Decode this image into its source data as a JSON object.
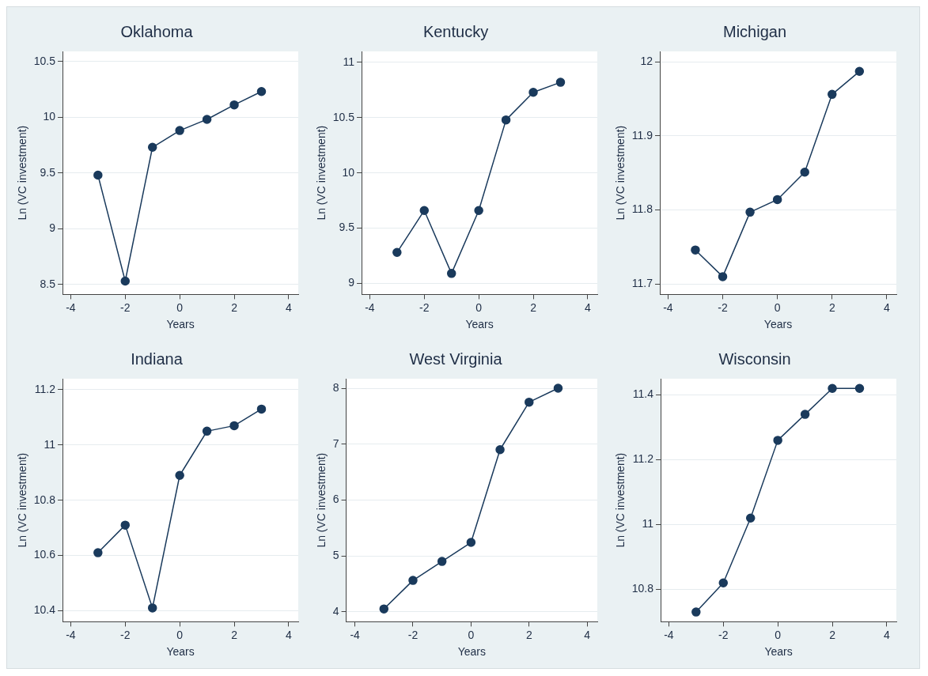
{
  "chart_data": [
    {
      "type": "line",
      "title": "Oklahoma",
      "xlabel": "Years",
      "ylabel": "Ln (VC investment)",
      "x": [
        -3,
        -2,
        -1,
        0,
        1,
        2,
        3
      ],
      "values": [
        9.48,
        8.53,
        9.73,
        9.88,
        9.98,
        10.11,
        10.23
      ],
      "color": "#1a3a5c",
      "marker": "circle",
      "xlim": [
        -4.3,
        4.35
      ],
      "xticks": [
        -4,
        -2,
        0,
        2,
        4
      ],
      "ylim": [
        8.41,
        10.59
      ],
      "yticks": [
        8.5,
        9,
        9.5,
        10,
        10.5
      ],
      "grid": "y"
    },
    {
      "type": "line",
      "title": "Kentucky",
      "xlabel": "Years",
      "ylabel": "Ln (VC investment)",
      "x": [
        -3,
        -2,
        -1,
        0,
        1,
        2,
        3
      ],
      "values": [
        9.28,
        9.66,
        9.09,
        9.66,
        10.48,
        10.73,
        10.82
      ],
      "color": "#1a3a5c",
      "marker": "circle",
      "xlim": [
        -4.3,
        4.35
      ],
      "xticks": [
        -4,
        -2,
        0,
        2,
        4
      ],
      "ylim": [
        8.9,
        11.1
      ],
      "yticks": [
        9,
        9.5,
        10,
        10.5,
        11
      ],
      "grid": "y"
    },
    {
      "type": "line",
      "title": "Michigan",
      "xlabel": "Years",
      "ylabel": "Ln (VC investment)",
      "x": [
        -3,
        -2,
        -1,
        0,
        1,
        2,
        3
      ],
      "values": [
        11.746,
        11.71,
        11.797,
        11.814,
        11.851,
        11.956,
        11.987
      ],
      "color": "#1a3a5c",
      "marker": "circle",
      "xlim": [
        -4.3,
        4.35
      ],
      "xticks": [
        -4,
        -2,
        0,
        2,
        4
      ],
      "ylim": [
        11.686,
        12.014
      ],
      "yticks": [
        11.7,
        11.8,
        11.9,
        12
      ],
      "grid": "y"
    },
    {
      "type": "line",
      "title": "Indiana",
      "xlabel": "Years",
      "ylabel": "Ln (VC investment)",
      "x": [
        -3,
        -2,
        -1,
        0,
        1,
        2,
        3
      ],
      "values": [
        10.61,
        10.71,
        10.41,
        10.89,
        11.05,
        11.07,
        11.13
      ],
      "color": "#1a3a5c",
      "marker": "circle",
      "xlim": [
        -4.3,
        4.35
      ],
      "xticks": [
        -4,
        -2,
        0,
        2,
        4
      ],
      "ylim": [
        10.36,
        11.24
      ],
      "yticks": [
        10.4,
        10.6,
        10.8,
        11,
        11.2
      ],
      "grid": "y"
    },
    {
      "type": "line",
      "title": "West Virginia",
      "xlabel": "Years",
      "ylabel": "Ln (VC investment)",
      "x": [
        -3,
        -2,
        -1,
        0,
        1,
        2,
        3
      ],
      "values": [
        4.05,
        4.56,
        4.9,
        5.24,
        6.9,
        7.75,
        8.0
      ],
      "color": "#1a3a5c",
      "marker": "circle",
      "xlim": [
        -4.3,
        4.35
      ],
      "xticks": [
        -4,
        -2,
        0,
        2,
        4
      ],
      "ylim": [
        3.82,
        8.17
      ],
      "yticks": [
        4,
        5,
        6,
        7,
        8
      ],
      "grid": "y"
    },
    {
      "type": "line",
      "title": "Wisconsin",
      "xlabel": "Years",
      "ylabel": "Ln (VC investment)",
      "x": [
        -3,
        -2,
        -1,
        0,
        1,
        2,
        3
      ],
      "values": [
        10.73,
        10.82,
        11.02,
        11.26,
        11.34,
        11.42,
        11.42
      ],
      "color": "#1a3a5c",
      "marker": "circle",
      "xlim": [
        -4.3,
        4.35
      ],
      "xticks": [
        -4,
        -2,
        0,
        2,
        4
      ],
      "ylim": [
        10.7,
        11.45
      ],
      "yticks": [
        10.8,
        11,
        11.2,
        11.4
      ],
      "grid": "y"
    }
  ]
}
